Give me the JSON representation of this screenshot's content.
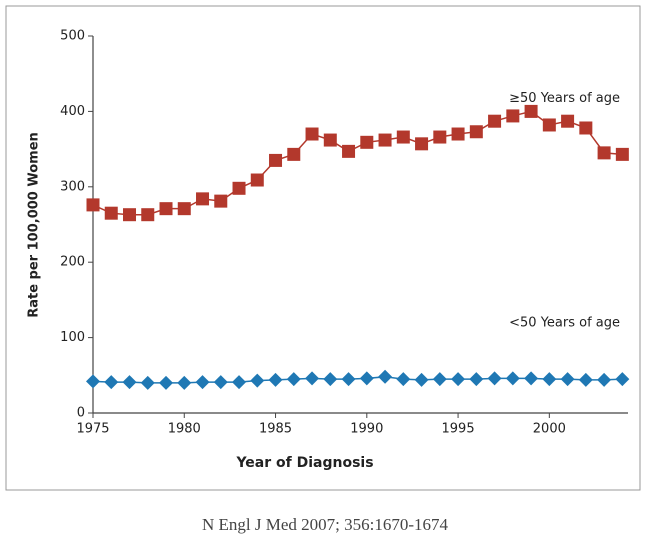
{
  "chart_data": {
    "type": "line",
    "x_label": "Year of Diagnosis",
    "y_label": "Rate per 100,000 Women",
    "x": [
      1975,
      1976,
      1977,
      1978,
      1979,
      1980,
      1981,
      1982,
      1983,
      1984,
      1985,
      1986,
      1987,
      1988,
      1989,
      1990,
      1991,
      1992,
      1993,
      1994,
      1995,
      1996,
      1997,
      1998,
      1999,
      2000,
      2001,
      2002,
      2003,
      2004
    ],
    "series": [
      {
        "name": "≥50 Years of age",
        "color": "#b3382c",
        "marker": "square",
        "values": [
          276,
          265,
          263,
          263,
          271,
          271,
          284,
          281,
          298,
          309,
          335,
          343,
          370,
          362,
          347,
          359,
          362,
          366,
          357,
          366,
          370,
          373,
          387,
          394,
          400,
          382,
          387,
          378,
          345,
          343
        ]
      },
      {
        "name": "<50 Years of age",
        "color": "#1f78b4",
        "marker": "diamond",
        "values": [
          42,
          41,
          41,
          40,
          40,
          40,
          41,
          41,
          41,
          43,
          44,
          45,
          46,
          45,
          45,
          46,
          48,
          45,
          44,
          45,
          45,
          45,
          46,
          46,
          46,
          45,
          45,
          44,
          44,
          45
        ]
      }
    ],
    "xlim": [
      1975,
      2004.2
    ],
    "xticks": [
      1975,
      1980,
      1985,
      1990,
      1995,
      2000
    ],
    "ylim": [
      0,
      500
    ],
    "yticks": [
      0,
      100,
      200,
      300,
      400,
      500
    ],
    "grid": false
  },
  "source": "N Engl J Med 2007; 356:1670-1674"
}
